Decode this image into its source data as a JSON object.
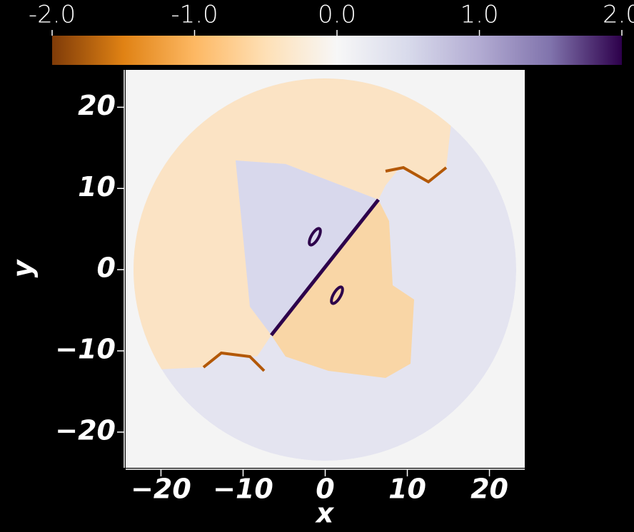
{
  "chart_data": {
    "type": "heatmap",
    "x_label": "x",
    "y_label": "y",
    "xlim": [
      -24.3,
      24.3
    ],
    "ylim": [
      -24.4,
      24.6
    ],
    "xticks": [
      {
        "value": -20,
        "label": "−20"
      },
      {
        "value": -10,
        "label": "−10"
      },
      0,
      10,
      20
    ],
    "yticks": [
      {
        "value": -20,
        "label": "−20"
      },
      {
        "value": -10,
        "label": "−10"
      },
      0,
      10,
      20
    ],
    "colorbar": {
      "lim": [
        -2,
        2
      ],
      "ticks": [
        {
          "value": -2,
          "label": "-2.0"
        },
        {
          "value": -1,
          "label": "-1.0"
        },
        {
          "value": 0,
          "label": "0.0"
        },
        {
          "value": 1,
          "label": "1.0"
        },
        {
          "value": 2,
          "label": "2.0"
        }
      ],
      "colors": [
        "#7f3b08",
        "#e08214",
        "#fdb863",
        "#fee0b6",
        "#f7f7f7",
        "#d8daeb",
        "#b2abd2",
        "#8073ac",
        "#2d004b"
      ]
    }
  }
}
